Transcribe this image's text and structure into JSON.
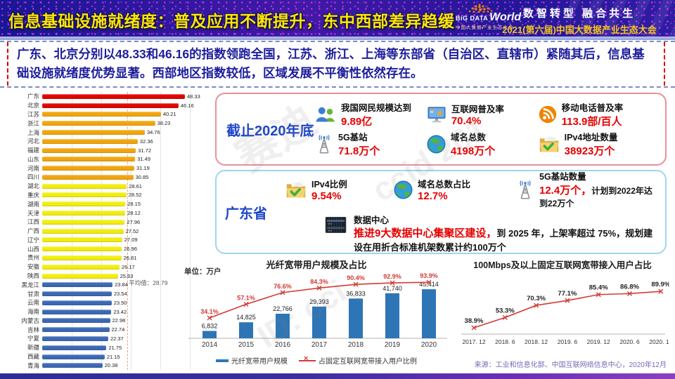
{
  "colors": {
    "accent_red": "#e60000",
    "title_yellow": "#ffe600",
    "summary_text_blue": "#1d1d9c",
    "panel2020_border": "#e8919b",
    "panel_gd_border": "#9fd4f2",
    "panel_label_blue": "#1e46c8",
    "bar_red": "#e10600",
    "bar_orange": "#f2a50c",
    "bar_yellow": "#f2ee0c",
    "bar_blue": "#3c69b5",
    "fiber_bar_blue": "#2e75b6",
    "line_red": "#d23b35"
  },
  "header": {
    "title": "信息基础设施就绪度：普及应用不断提升，东中西部差异趋缓",
    "logo": {
      "line1": "BiG DATA",
      "line2": "World",
      "subtitle": "中国大数据产业生态大会"
    },
    "slogan": "数智转型 融合共生",
    "event": "2021(第六届)中国大数据产业生态大会"
  },
  "summary": "广东、北京分别以48.33和46.16的指数领跑全国，江苏、浙江、上海等东部省（自治区、直辖市）紧随其后，信息基础设施就绪度优势显著。西部地区指数较低，区域发展不平衡性依然存在。",
  "stats2020": {
    "label": "截止2020年底",
    "items": [
      {
        "icon": "netizens-icon",
        "label": "我国网民规模达到",
        "value": "9.89亿"
      },
      {
        "icon": "internet-monitor-icon",
        "label": "互联网普及率",
        "value": "70.4%"
      },
      {
        "icon": "mobile-signal-icon",
        "label": "移动电话普及率",
        "value": "113.9部/百人"
      },
      {
        "icon": "5g-tower-icon",
        "label": "5G基站",
        "value": "71.8万个"
      },
      {
        "icon": "globe-icon",
        "label": "域名总数",
        "value": "4198万个"
      },
      {
        "icon": "folder-check-icon",
        "label": "IPv4地址数量",
        "value": "38923万个"
      }
    ]
  },
  "guangdong": {
    "label": "广东省",
    "items": [
      {
        "icon": "folder-check-icon",
        "label": "IPv4比例",
        "value": "9.54%",
        "suffix": ""
      },
      {
        "icon": "globe-icon",
        "label": "域名总数占比",
        "value": "12.7%",
        "suffix": ""
      },
      {
        "icon": "5g-tower-icon",
        "label": "5G基站数量",
        "value": "12.4万个，",
        "suffix": "计划到2022年达到22万个"
      }
    ],
    "datacenter": {
      "label": "数据中心",
      "highlight": "推进9大数据中心集聚区建设，",
      "rest": "到 2025 年，上架率超过 75%，规划建设在用折合标准机架数累计约100万个"
    }
  },
  "chart_data": [
    {
      "id": "province_readiness_index",
      "type": "bar",
      "orientation": "horizontal",
      "xlim": [
        0,
        50
      ],
      "grid_step": 10,
      "average": 28.79,
      "average_label": "平均值：28.79",
      "categories": [
        "广东",
        "北京",
        "江苏",
        "浙江",
        "上海",
        "河北",
        "福建",
        "山东",
        "河南",
        "四川",
        "湖北",
        "重庆",
        "湖南",
        "天津",
        "江西",
        "广西",
        "辽宁",
        "山西",
        "贵州",
        "安徽",
        "陕西",
        "黑龙江",
        "甘肃",
        "云南",
        "海南",
        "内蒙古",
        "吉林",
        "宁夏",
        "新疆",
        "西藏",
        "青海"
      ],
      "values": [
        48.33,
        46.16,
        40.21,
        38.23,
        34.76,
        32.36,
        31.72,
        31.49,
        31.19,
        30.85,
        28.61,
        28.52,
        28.15,
        28.12,
        27.96,
        27.52,
        27.09,
        26.96,
        26.81,
        26.17,
        25.63,
        23.84,
        23.54,
        23.5,
        23.42,
        22.98,
        22.74,
        22.37,
        21.75,
        21.15,
        20.38
      ],
      "tiers": [
        "red",
        "red",
        "orange",
        "orange",
        "orange",
        "orange",
        "orange",
        "orange",
        "orange",
        "orange",
        "yellow",
        "yellow",
        "yellow",
        "yellow",
        "yellow",
        "yellow",
        "yellow",
        "yellow",
        "yellow",
        "yellow",
        "yellow",
        "blue",
        "blue",
        "blue",
        "blue",
        "blue",
        "blue",
        "blue",
        "blue",
        "blue",
        "blue"
      ],
      "tier_colors": {
        "red": "#e10600",
        "orange": "#f2a50c",
        "yellow": "#f2ee0c",
        "blue": "#3c69b5"
      }
    },
    {
      "id": "fiber_broadband_users",
      "type": "bar+line",
      "title": "光纤宽带用户规模及占比",
      "unit": "单位：万户",
      "categories": [
        "2014",
        "2015",
        "2016",
        "2017",
        "2018",
        "2019",
        "2020"
      ],
      "bar_series": {
        "name": "光纤宽带用户规模",
        "values": [
          6832,
          14825,
          22766,
          29393,
          36833,
          41740,
          45414
        ],
        "labels": [
          "6,832",
          "14,825",
          "22,766",
          "29,393",
          "36,833",
          "41,740",
          "45,414"
        ]
      },
      "line_series": {
        "name": "占固定互联网宽带接入用户比例",
        "values": [
          34.1,
          57.1,
          76.6,
          84.3,
          90.4,
          92.9,
          93.9
        ],
        "labels": [
          "34.1%",
          "57.1%",
          "76.6%",
          "84.3%",
          "90.4%",
          "92.9%",
          "93.9%"
        ]
      },
      "bar_color": "#2e75b6",
      "line_color": "#d23b35"
    },
    {
      "id": "fixed_broadband_100mbps_share",
      "type": "line",
      "title": "100Mbps及以上固定互联网宽带接入用户占比",
      "x": [
        "2017. 12",
        "2018. 6",
        "2018. 12",
        "2019. 6",
        "2019. 12",
        "2020. 6",
        "2020. 12"
      ],
      "values": [
        38.9,
        53.3,
        70.3,
        77.1,
        85.4,
        86.8,
        89.9
      ],
      "labels": [
        "38.9%",
        "53.3%",
        "70.3%",
        "77.1%",
        "85.4%",
        "86.8%",
        "89.9%"
      ],
      "line_color": "#d23b35"
    }
  ],
  "source": "来源：工业和信息化部、中国互联网络信息中心，2020年12月",
  "watermarks": [
    "赛迪",
    "ccid 201",
    "ID: cci"
  ]
}
